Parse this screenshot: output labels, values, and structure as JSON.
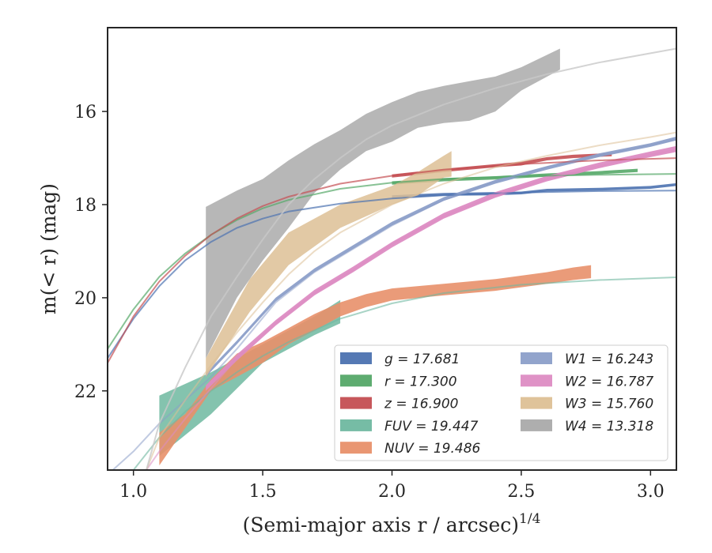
{
  "chart_data": {
    "type": "line",
    "xlabel": "(Semi-major axis r / arcsec)",
    "xlabel_sup": "1/4",
    "ylabel": "m(< r) (mag)",
    "xlim": [
      0.9,
      3.1
    ],
    "ylim": [
      23.7,
      14.2
    ],
    "y_inverted": true,
    "grid": false,
    "legend_position": "lower-right",
    "x_ticks": [
      1.0,
      1.5,
      2.0,
      2.5,
      3.0
    ],
    "x_tick_labels": [
      "1.0",
      "1.5",
      "2.0",
      "2.5",
      "3.0"
    ],
    "y_ticks": [
      16,
      18,
      20,
      22
    ],
    "y_tick_labels": [
      "16",
      "18",
      "20",
      "22"
    ],
    "legend": [
      {
        "label": "g = 17.681",
        "color": "#4c72b0"
      },
      {
        "label": "r = 17.300",
        "color": "#55a868"
      },
      {
        "label": "z = 16.900",
        "color": "#c44e52"
      },
      {
        "label": "FUV = 19.447",
        "color": "#6fb8a0"
      },
      {
        "label": "NUV = 19.486",
        "color": "#e8906a"
      },
      {
        "label": "W1 = 16.243",
        "color": "#8c9fc9"
      },
      {
        "label": "W2 = 16.787",
        "color": "#dd8cc3"
      },
      {
        "label": "W3 = 15.760",
        "color": "#ddc095"
      },
      {
        "label": "W4 = 13.318",
        "color": "#aaaaaa"
      }
    ],
    "series": [
      {
        "name": "g",
        "kind": "band",
        "color": "#4c72b0",
        "opacity": 0.9,
        "x": [
          2.0,
          2.2,
          2.4,
          2.5,
          2.6,
          2.8,
          3.0,
          3.1
        ],
        "y_low": [
          17.87,
          17.81,
          17.8,
          17.78,
          17.72,
          17.7,
          17.66,
          17.6
        ],
        "y_high": [
          17.8,
          17.75,
          17.73,
          17.72,
          17.66,
          17.64,
          17.6,
          17.54
        ]
      },
      {
        "name": "r",
        "kind": "band",
        "color": "#55a868",
        "opacity": 0.9,
        "x": [
          2.0,
          2.2,
          2.4,
          2.6,
          2.8,
          2.95
        ],
        "y_low": [
          17.57,
          17.5,
          17.46,
          17.4,
          17.35,
          17.3
        ],
        "y_high": [
          17.5,
          17.43,
          17.39,
          17.33,
          17.28,
          17.23
        ]
      },
      {
        "name": "z",
        "kind": "band",
        "color": "#c44e52",
        "opacity": 0.9,
        "x": [
          2.0,
          2.2,
          2.4,
          2.5,
          2.6,
          2.7,
          2.85
        ],
        "y_low": [
          17.42,
          17.3,
          17.2,
          17.16,
          17.05,
          17.0,
          16.96
        ],
        "y_high": [
          17.35,
          17.23,
          17.13,
          17.08,
          16.98,
          16.93,
          16.89
        ]
      },
      {
        "name": "FUV",
        "kind": "band",
        "color": "#6fb8a0",
        "opacity": 0.85,
        "x": [
          1.1,
          1.3,
          1.5,
          1.7,
          1.8
        ],
        "y_low": [
          23.4,
          22.5,
          21.4,
          20.8,
          20.55
        ],
        "y_high": [
          22.1,
          21.6,
          21.0,
          20.4,
          20.05
        ]
      },
      {
        "name": "NUV",
        "kind": "band",
        "color": "#e8906a",
        "opacity": 0.9,
        "x": [
          1.1,
          1.2,
          1.3,
          1.4,
          1.5,
          1.6,
          1.7,
          1.8,
          1.9,
          2.0,
          2.2,
          2.4,
          2.6,
          2.7,
          2.77
        ],
        "y_low": [
          23.6,
          22.8,
          22.0,
          21.7,
          21.4,
          21.0,
          20.7,
          20.4,
          20.2,
          20.06,
          19.95,
          19.85,
          19.7,
          19.62,
          19.58
        ],
        "y_high": [
          22.9,
          22.5,
          21.75,
          21.2,
          20.95,
          20.65,
          20.35,
          20.1,
          19.92,
          19.8,
          19.7,
          19.6,
          19.45,
          19.35,
          19.3
        ]
      },
      {
        "name": "W1",
        "kind": "band",
        "color": "#8c9fc9",
        "opacity": 0.95,
        "x": [
          1.28,
          1.4,
          1.55,
          1.7,
          1.85,
          2.0,
          2.2,
          2.4,
          2.6,
          2.8,
          3.0,
          3.1
        ],
        "y_low": [
          21.7,
          21.0,
          20.08,
          19.45,
          18.95,
          18.45,
          17.92,
          17.55,
          17.25,
          16.98,
          16.76,
          16.62
        ],
        "y_high": [
          21.62,
          20.92,
          20.0,
          19.37,
          18.87,
          18.37,
          17.84,
          17.47,
          17.17,
          16.9,
          16.68,
          16.54
        ]
      },
      {
        "name": "W2",
        "kind": "band",
        "color": "#dd8cc3",
        "opacity": 0.95,
        "x": [
          1.28,
          1.4,
          1.55,
          1.7,
          1.85,
          2.0,
          2.2,
          2.4,
          2.6,
          2.8,
          3.0,
          3.1
        ],
        "y_low": [
          22.0,
          21.35,
          20.6,
          19.95,
          19.45,
          18.92,
          18.3,
          17.85,
          17.5,
          17.22,
          16.98,
          16.87
        ],
        "y_high": [
          21.88,
          21.22,
          20.48,
          19.83,
          19.33,
          18.8,
          18.18,
          17.73,
          17.38,
          17.1,
          16.86,
          16.74
        ]
      },
      {
        "name": "W3",
        "kind": "band",
        "color": "#ddc095",
        "opacity": 0.85,
        "x": [
          1.28,
          1.45,
          1.6,
          1.8,
          2.0,
          2.1,
          2.2,
          2.23
        ],
        "y_low": [
          21.7,
          20.3,
          19.3,
          18.5,
          18.0,
          17.8,
          17.42,
          17.4
        ],
        "y_high": [
          21.3,
          19.6,
          18.6,
          18.0,
          17.6,
          17.3,
          16.95,
          16.85
        ]
      },
      {
        "name": "W4",
        "kind": "band",
        "color": "#aaaaaa",
        "opacity": 0.85,
        "x": [
          1.28,
          1.4,
          1.5,
          1.6,
          1.7,
          1.8,
          1.9,
          2.0,
          2.1,
          2.2,
          2.3,
          2.4,
          2.5,
          2.65
        ],
        "y_low": [
          21.3,
          20.0,
          19.2,
          18.5,
          17.75,
          17.25,
          16.85,
          16.65,
          16.35,
          16.25,
          16.2,
          16.0,
          15.55,
          15.1
        ],
        "y_high": [
          18.05,
          17.7,
          17.45,
          17.05,
          16.7,
          16.4,
          16.05,
          15.8,
          15.58,
          15.45,
          15.35,
          15.25,
          15.05,
          14.65
        ]
      },
      {
        "name": "g model",
        "kind": "line",
        "color": "#4c72b0",
        "opacity": 0.7,
        "width": 2,
        "x": [
          0.9,
          1.0,
          1.1,
          1.2,
          1.3,
          1.4,
          1.5,
          1.6,
          1.8,
          2.0,
          2.2,
          2.5,
          2.8,
          3.1
        ],
        "y": [
          21.3,
          20.45,
          19.75,
          19.2,
          18.8,
          18.5,
          18.3,
          18.15,
          17.98,
          17.87,
          17.8,
          17.74,
          17.71,
          17.7
        ]
      },
      {
        "name": "r model",
        "kind": "line",
        "color": "#55a868",
        "opacity": 0.7,
        "width": 2,
        "x": [
          0.9,
          1.0,
          1.1,
          1.2,
          1.3,
          1.4,
          1.5,
          1.6,
          1.8,
          2.0,
          2.2,
          2.5,
          2.8,
          3.1
        ],
        "y": [
          21.1,
          20.25,
          19.55,
          19.05,
          18.65,
          18.33,
          18.08,
          17.9,
          17.66,
          17.53,
          17.45,
          17.39,
          17.36,
          17.34
        ]
      },
      {
        "name": "z model",
        "kind": "line",
        "color": "#c44e52",
        "opacity": 0.7,
        "width": 2,
        "x": [
          0.9,
          1.0,
          1.1,
          1.2,
          1.3,
          1.4,
          1.5,
          1.6,
          1.8,
          2.0,
          2.2,
          2.5,
          2.8,
          3.1
        ],
        "y": [
          21.4,
          20.4,
          19.65,
          19.1,
          18.65,
          18.3,
          18.03,
          17.83,
          17.55,
          17.38,
          17.25,
          17.13,
          17.05,
          17.0
        ]
      },
      {
        "name": "FUV/NUV model",
        "kind": "line",
        "color": "#6fb8a0",
        "opacity": 0.6,
        "width": 2,
        "x": [
          1.0,
          1.05,
          1.1,
          1.2,
          1.3,
          1.4,
          1.5,
          1.6,
          1.8,
          2.0,
          2.2,
          2.5,
          2.8,
          3.1
        ],
        "y": [
          23.7,
          23.35,
          23.0,
          22.45,
          22.0,
          21.6,
          21.25,
          20.95,
          20.45,
          20.12,
          19.9,
          19.72,
          19.62,
          19.56
        ]
      },
      {
        "name": "W1 model",
        "kind": "line",
        "color": "#8c9fc9",
        "opacity": 0.55,
        "width": 2,
        "x": [
          0.92,
          1.0,
          1.1,
          1.2,
          1.3,
          1.4,
          1.55,
          1.7,
          1.85,
          2.0,
          2.2,
          2.4,
          2.6,
          2.8,
          3.0,
          3.1
        ],
        "y": [
          23.7,
          23.3,
          22.7,
          22.2,
          21.7,
          21.1,
          20.1,
          19.45,
          18.95,
          18.45,
          17.9,
          17.5,
          17.2,
          16.95,
          16.72,
          16.6
        ]
      },
      {
        "name": "W2 model",
        "kind": "line",
        "color": "#dd8cc3",
        "opacity": 0.55,
        "width": 2,
        "x": [
          1.05,
          1.1,
          1.2,
          1.3,
          1.4,
          1.55,
          1.7,
          1.85,
          2.0,
          2.2,
          2.4,
          2.6,
          2.8,
          3.0,
          3.1
        ],
        "y": [
          23.7,
          23.3,
          22.6,
          21.95,
          21.3,
          20.55,
          19.9,
          19.4,
          18.85,
          18.25,
          17.8,
          17.45,
          17.17,
          16.93,
          16.82
        ]
      },
      {
        "name": "W3 model",
        "kind": "line",
        "color": "#ddc095",
        "opacity": 0.55,
        "width": 2,
        "x": [
          1.05,
          1.1,
          1.2,
          1.3,
          1.4,
          1.5,
          1.6,
          1.7,
          1.8,
          2.0,
          2.2,
          2.4,
          2.6,
          2.8,
          3.0,
          3.1
        ],
        "y": [
          23.7,
          23.0,
          22.2,
          21.45,
          20.75,
          20.1,
          19.5,
          19.0,
          18.6,
          18.0,
          17.55,
          17.2,
          16.95,
          16.73,
          16.55,
          16.45
        ]
      },
      {
        "name": "W4 model",
        "kind": "line",
        "color": "#c8c8c8",
        "opacity": 0.8,
        "width": 2,
        "x": [
          1.05,
          1.1,
          1.2,
          1.3,
          1.4,
          1.5,
          1.6,
          1.7,
          1.8,
          1.9,
          2.0,
          2.2,
          2.4,
          2.6,
          2.8,
          3.0,
          3.1
        ],
        "y": [
          23.7,
          22.7,
          21.5,
          20.4,
          19.55,
          18.75,
          18.0,
          17.45,
          17.0,
          16.6,
          16.3,
          15.85,
          15.5,
          15.2,
          14.95,
          14.75,
          14.65
        ]
      }
    ]
  }
}
